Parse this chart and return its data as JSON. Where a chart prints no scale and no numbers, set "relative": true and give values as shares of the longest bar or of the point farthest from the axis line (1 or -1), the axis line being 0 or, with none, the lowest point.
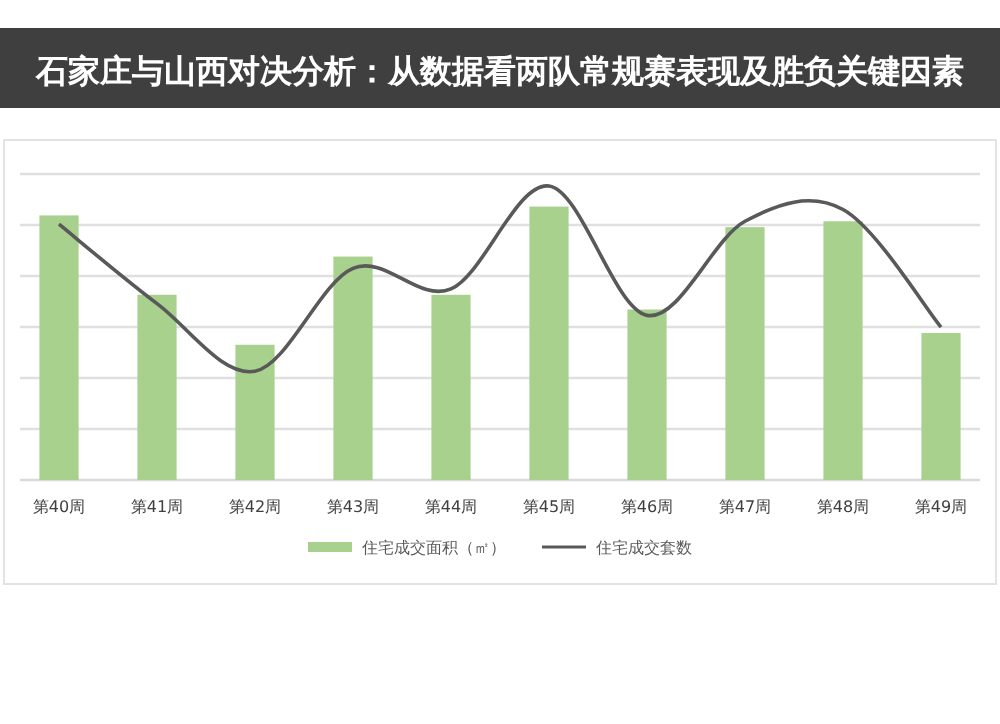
{
  "chart_data": {
    "type": "bar",
    "title": "石家庄与山西对决分析：从数据看两队常规赛表现及胜负关键因素",
    "relative": true,
    "grid": "y",
    "legend": "bottom",
    "categories": [
      "第40周",
      "第41周",
      "第42周",
      "第43周",
      "第44周",
      "第45周",
      "第46周",
      "第47周",
      "第48周",
      "第49周"
    ],
    "series": [
      {
        "name": "住宅成交面积（㎡）",
        "color": "#a9d18e",
        "values": [
          0.9,
          0.63,
          0.46,
          0.76,
          0.63,
          0.93,
          0.58,
          0.86,
          0.88,
          0.5
        ]
      },
      {
        "name": "住宅成交套数",
        "type": "line",
        "color": "#595959",
        "values": [
          0.87,
          0.6,
          0.37,
          0.72,
          0.65,
          1.0,
          0.56,
          0.88,
          0.92,
          0.52
        ]
      }
    ]
  }
}
